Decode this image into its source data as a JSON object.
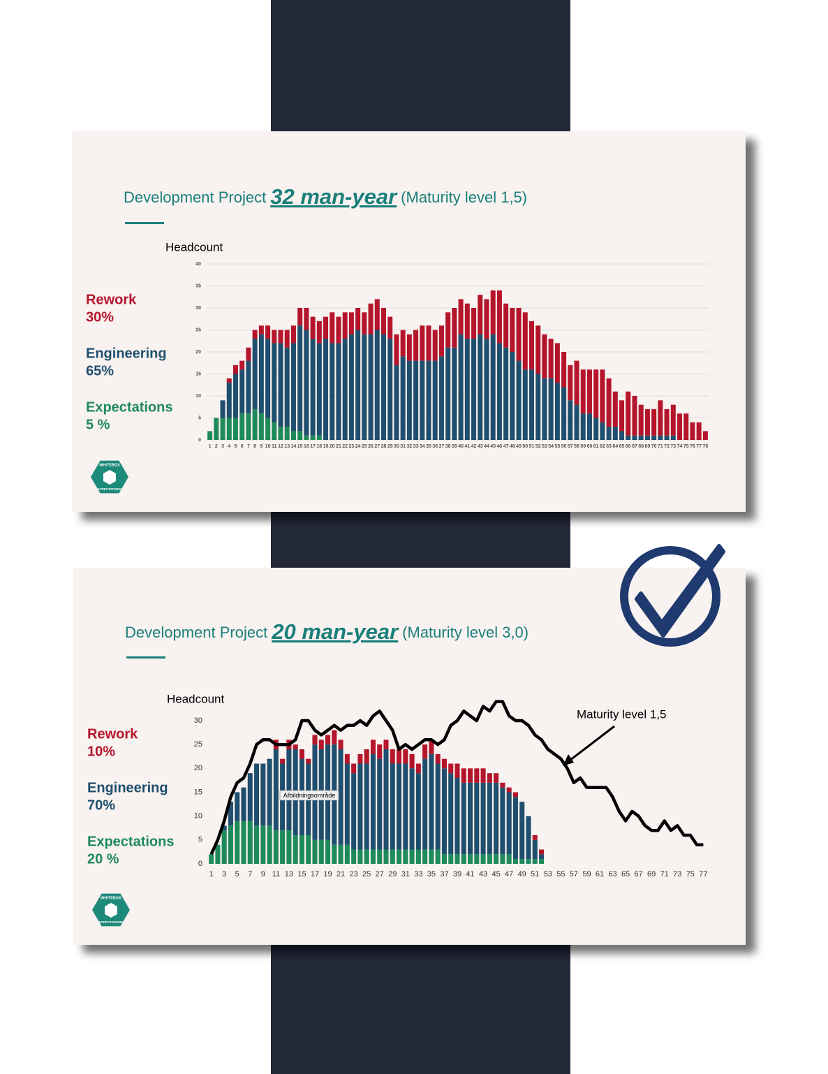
{
  "chart_data": [
    {
      "type": "bar",
      "title": "Development Project",
      "highlight": "32 man-year",
      "subtitle": "(Maturity level 1,5)",
      "y_label": "Headcount",
      "categories": [
        1,
        2,
        3,
        4,
        5,
        6,
        7,
        8,
        9,
        10,
        11,
        12,
        13,
        14,
        15,
        16,
        17,
        18,
        19,
        20,
        21,
        22,
        23,
        24,
        25,
        26,
        27,
        28,
        29,
        30,
        31,
        32,
        33,
        34,
        35,
        36,
        37,
        38,
        39,
        40,
        41,
        42,
        43,
        44,
        45,
        46,
        47,
        48,
        49,
        50,
        51,
        52,
        53,
        54,
        55,
        56,
        57,
        58,
        59,
        60,
        61,
        62,
        63,
        64,
        65,
        66,
        67,
        68,
        69,
        70,
        71,
        72,
        73,
        74,
        75,
        76,
        77,
        78
      ],
      "series": [
        {
          "name": "Expectations",
          "share_label": "5 %",
          "color": "#1e8a5a",
          "values": [
            2,
            5,
            5,
            5,
            5,
            6,
            6,
            7,
            6,
            5,
            4,
            3,
            3,
            2,
            2,
            1,
            1,
            1,
            0,
            0,
            0,
            0,
            0,
            0,
            0,
            0,
            0,
            0,
            0,
            0,
            0,
            0,
            0,
            0,
            0,
            0,
            0,
            0,
            0,
            0,
            0,
            0,
            0,
            0,
            0,
            0,
            0,
            0,
            0,
            0,
            0,
            0,
            0,
            0,
            0,
            0,
            0,
            0,
            0,
            0,
            0,
            0,
            0,
            0,
            0,
            0,
            0,
            0,
            0,
            0,
            0,
            0,
            0,
            0,
            0,
            0,
            0,
            0
          ]
        },
        {
          "name": "Engineering",
          "share_label": "65%",
          "color": "#1f4e6e",
          "values": [
            0,
            0,
            4,
            8,
            10,
            10,
            12,
            16,
            18,
            18,
            18,
            19,
            18,
            20,
            24,
            24,
            22,
            21,
            23,
            22,
            22,
            23,
            24,
            25,
            24,
            24,
            25,
            24,
            23,
            17,
            19,
            18,
            18,
            18,
            18,
            18,
            19,
            21,
            21,
            24,
            23,
            23,
            24,
            23,
            24,
            22,
            21,
            20,
            18,
            16,
            16,
            15,
            14,
            14,
            13,
            12,
            9,
            8,
            6,
            6,
            5,
            4,
            3,
            3,
            2,
            1,
            1,
            1,
            1,
            1,
            1,
            1,
            1,
            0,
            0,
            0,
            0,
            0
          ]
        },
        {
          "name": "Rework",
          "share_label": "30%",
          "color": "#b5152b",
          "values": [
            0,
            0,
            0,
            1,
            2,
            2,
            3,
            2,
            2,
            3,
            3,
            3,
            4,
            4,
            4,
            5,
            5,
            5,
            5,
            7,
            6,
            6,
            5,
            5,
            5,
            7,
            7,
            6,
            5,
            7,
            6,
            6,
            7,
            8,
            8,
            7,
            7,
            8,
            9,
            8,
            8,
            7,
            9,
            9,
            10,
            12,
            10,
            10,
            12,
            13,
            11,
            11,
            10,
            9,
            9,
            8,
            8,
            10,
            10,
            10,
            11,
            12,
            11,
            8,
            7,
            10,
            9,
            7,
            6,
            6,
            8,
            6,
            7,
            6,
            6,
            4,
            4,
            2
          ]
        }
      ],
      "ylim": [
        0,
        40
      ],
      "yticks": [
        0,
        5,
        10,
        15,
        20,
        25,
        30,
        35,
        40
      ],
      "grid": true,
      "logo": [
        "WHITEBOX",
        "EXPECTATIONS"
      ]
    },
    {
      "type": "bar",
      "title": "Development Project",
      "highlight": "20 man-year",
      "subtitle": "(Maturity level 3,0)",
      "y_label": "Headcount",
      "categories": [
        1,
        null,
        3,
        null,
        5,
        null,
        7,
        null,
        9,
        null,
        11,
        null,
        13,
        null,
        15,
        null,
        17,
        null,
        19,
        null,
        21,
        null,
        23,
        null,
        25,
        null,
        27,
        null,
        29,
        null,
        31,
        null,
        33,
        null,
        35,
        null,
        37,
        null,
        39,
        null,
        41,
        null,
        43,
        null,
        45,
        null,
        47,
        null,
        49,
        null,
        51,
        null,
        53,
        null,
        55,
        null,
        57,
        null,
        59,
        null,
        61,
        null,
        63,
        null,
        65,
        null,
        67,
        null,
        69,
        null,
        71,
        null,
        73,
        null,
        75,
        null,
        77
      ],
      "series": [
        {
          "name": "Expectations",
          "share_label": "20 %",
          "color": "#1e8a5a",
          "values": [
            2,
            4,
            7,
            8,
            9,
            9,
            9,
            8,
            8,
            8,
            7,
            7,
            7,
            6,
            6,
            6,
            5,
            5,
            5,
            4,
            4,
            4,
            3,
            3,
            3,
            3,
            3,
            3,
            3,
            3,
            3,
            3,
            3,
            3,
            3,
            3,
            2,
            2,
            2,
            2,
            2,
            2,
            2,
            2,
            2,
            2,
            2,
            1,
            1,
            1,
            1,
            1,
            null,
            null,
            null,
            null,
            null,
            null,
            null,
            null,
            null,
            null,
            null,
            null,
            null,
            null,
            null,
            null,
            null,
            null,
            null,
            null,
            null,
            null,
            null,
            null,
            null
          ]
        },
        {
          "name": "Engineering",
          "share_label": "70%",
          "color": "#1f4e6e",
          "values": [
            0,
            0,
            1,
            5,
            6,
            7,
            10,
            13,
            13,
            14,
            17,
            14,
            17,
            18,
            16,
            15,
            20,
            19,
            20,
            21,
            20,
            17,
            16,
            18,
            18,
            20,
            19,
            21,
            18,
            18,
            18,
            17,
            16,
            19,
            20,
            18,
            18,
            17,
            16,
            15,
            15,
            15,
            15,
            15,
            15,
            14,
            13,
            13,
            12,
            9,
            4,
            1,
            null,
            null,
            null,
            null,
            null,
            null,
            null,
            null,
            null,
            null,
            null,
            null,
            null,
            null,
            null,
            null,
            null,
            null,
            null,
            null,
            null,
            null,
            null,
            null,
            null
          ]
        },
        {
          "name": "Rework",
          "share_label": "10%",
          "color": "#b5152b",
          "values": [
            0,
            0,
            0,
            0,
            0,
            0,
            0,
            0,
            0,
            0,
            2,
            1,
            2,
            1,
            2,
            1,
            2,
            2,
            2,
            3,
            2,
            2,
            2,
            2,
            3,
            3,
            3,
            2,
            3,
            3,
            3,
            3,
            2,
            3,
            3,
            2,
            2,
            2,
            3,
            3,
            3,
            3,
            3,
            2,
            2,
            1,
            1,
            1,
            0,
            0,
            1,
            1,
            null,
            null,
            null,
            null,
            null,
            null,
            null,
            null,
            null,
            null,
            null,
            null,
            null,
            null,
            null,
            null,
            null,
            null,
            null,
            null,
            null,
            null,
            null,
            null,
            null
          ]
        },
        {
          "name": "Maturity level 1,5",
          "type": "line",
          "color": "#000000",
          "values": [
            2,
            5,
            9,
            14,
            17,
            18,
            21,
            25,
            26,
            26,
            25,
            25,
            25,
            26,
            30,
            30,
            28,
            27,
            28,
            29,
            28,
            29,
            29,
            30,
            29,
            31,
            32,
            30,
            28,
            24,
            25,
            24,
            25,
            26,
            26,
            25,
            26,
            29,
            30,
            32,
            31,
            30,
            33,
            32,
            34,
            34,
            31,
            30,
            30,
            29,
            27,
            26,
            24,
            23,
            22,
            20,
            17,
            18,
            16,
            16,
            16,
            16,
            14,
            11,
            9,
            11,
            10,
            8,
            7,
            7,
            9,
            7,
            8,
            6,
            6,
            4,
            4
          ]
        }
      ],
      "ylim": [
        0,
        30
      ],
      "yticks": [
        0,
        5,
        10,
        15,
        20,
        25,
        30
      ],
      "grid": false,
      "tooltip": "Afbildningsområde",
      "logo": [
        "WHITEBOX",
        "EXPECTATIONS"
      ]
    }
  ]
}
